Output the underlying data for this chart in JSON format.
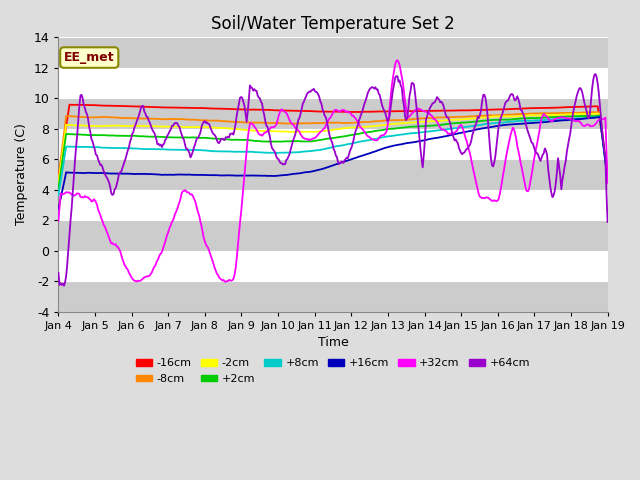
{
  "title": "Soil/Water Temperature Set 2",
  "xlabel": "Time",
  "ylabel": "Temperature (C)",
  "ylim": [
    -4,
    14
  ],
  "yticks": [
    -4,
    -2,
    0,
    2,
    4,
    6,
    8,
    10,
    12,
    14
  ],
  "annotation_text": "EE_met",
  "annotation_color": "#800000",
  "annotation_bg": "#ffffcc",
  "series": [
    {
      "label": "-16cm",
      "color": "#ff0000"
    },
    {
      "label": "-8cm",
      "color": "#ff8800"
    },
    {
      "label": "-2cm",
      "color": "#ffff00"
    },
    {
      "label": "+2cm",
      "color": "#00cc00"
    },
    {
      "label": "+8cm",
      "color": "#00cccc"
    },
    {
      "label": "+16cm",
      "color": "#0000bb"
    },
    {
      "label": "+32cm",
      "color": "#ff00ff"
    },
    {
      "label": "+64cm",
      "color": "#9900cc"
    }
  ],
  "n_points": 500,
  "x_start": 0,
  "x_end": 15,
  "xtick_labels": [
    "Jan 4",
    "Jan 5",
    "Jan 6",
    "Jan 7",
    "Jan 8",
    "Jan 9",
    "Jan 10",
    "Jan 11",
    "Jan 12",
    "Jan 13",
    "Jan 14",
    "Jan 15",
    "Jan 16",
    "Jan 17",
    "Jan 18",
    "Jan 19"
  ],
  "xtick_positions": [
    0,
    1,
    2,
    3,
    4,
    5,
    6,
    7,
    8,
    9,
    10,
    11,
    12,
    13,
    14,
    15
  ],
  "band_colors": [
    "#ffffff",
    "#d8d8d8"
  ],
  "grid_color": "#ffffff"
}
